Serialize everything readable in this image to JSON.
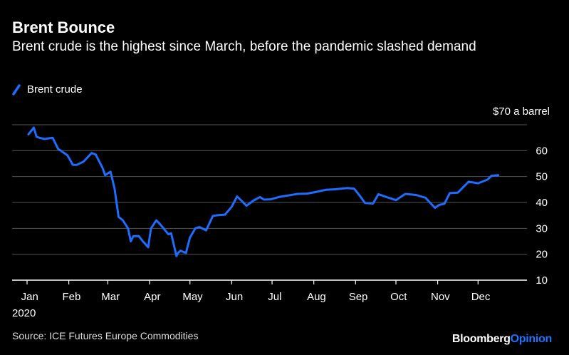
{
  "header": {
    "title": "Brent Bounce",
    "subtitle": "Brent crude is the highest since March, before the pandemic slashed demand"
  },
  "footer": {
    "source": "Source: ICE Futures Europe Commodities",
    "brand_part1": "Bloomberg",
    "brand_part2": "Opinion"
  },
  "colors": {
    "background": "#000000",
    "line": "#1e6dff",
    "grid": "#555555",
    "brand_accent": "#1e73ff"
  },
  "chart_data": {
    "type": "line",
    "title": "Brent Bounce",
    "unit_label": "$70 a barrel",
    "ylim": [
      10,
      70
    ],
    "yticks": [
      10,
      20,
      30,
      40,
      50,
      60
    ],
    "y_tick_labels": [
      "10",
      "20",
      "30",
      "40",
      "50",
      "60"
    ],
    "grid": true,
    "legend": "top-left",
    "x_ticks": [
      "Jan",
      "Feb",
      "Mar",
      "Apr",
      "May",
      "Jun",
      "Jul",
      "Aug",
      "Sep",
      "Oct",
      "Nov",
      "Dec"
    ],
    "x_tick_sublabel": "2020",
    "series": [
      {
        "name": "Brent crude",
        "x": [
          "2020-01-02",
          "2020-01-06",
          "2020-01-08",
          "2020-01-10",
          "2020-01-14",
          "2020-01-20",
          "2020-01-24",
          "2020-01-28",
          "2020-01-31",
          "2020-02-04",
          "2020-02-07",
          "2020-02-12",
          "2020-02-18",
          "2020-02-21",
          "2020-02-26",
          "2020-02-28",
          "2020-03-03",
          "2020-03-06",
          "2020-03-09",
          "2020-03-12",
          "2020-03-16",
          "2020-03-18",
          "2020-03-20",
          "2020-03-24",
          "2020-03-27",
          "2020-03-31",
          "2020-04-02",
          "2020-04-06",
          "2020-04-09",
          "2020-04-15",
          "2020-04-17",
          "2020-04-21",
          "2020-04-22",
          "2020-04-24",
          "2020-04-28",
          "2020-05-01",
          "2020-05-05",
          "2020-05-08",
          "2020-05-13",
          "2020-05-18",
          "2020-05-22",
          "2020-05-27",
          "2020-06-01",
          "2020-06-05",
          "2020-06-08",
          "2020-06-12",
          "2020-06-17",
          "2020-06-22",
          "2020-06-25",
          "2020-06-30",
          "2020-07-06",
          "2020-07-13",
          "2020-07-20",
          "2020-07-27",
          "2020-08-03",
          "2020-08-10",
          "2020-08-17",
          "2020-08-26",
          "2020-08-31",
          "2020-09-04",
          "2020-09-08",
          "2020-09-14",
          "2020-09-18",
          "2020-09-25",
          "2020-10-01",
          "2020-10-08",
          "2020-10-16",
          "2020-10-23",
          "2020-10-30",
          "2020-11-02",
          "2020-11-06",
          "2020-11-10",
          "2020-11-16",
          "2020-11-24",
          "2020-12-01",
          "2020-12-08",
          "2020-12-11",
          "2020-12-16"
        ],
        "y": [
          66.3,
          68.9,
          65.4,
          65.0,
          64.5,
          65.0,
          60.7,
          59.3,
          58.2,
          54.5,
          54.5,
          55.8,
          59.1,
          58.5,
          53.4,
          50.5,
          51.9,
          45.3,
          34.4,
          33.2,
          30.0,
          25.0,
          27.0,
          27.0,
          25.0,
          22.7,
          29.9,
          33.1,
          31.5,
          27.7,
          28.1,
          19.3,
          20.4,
          21.4,
          20.5,
          26.4,
          30.0,
          30.5,
          29.2,
          34.8,
          35.1,
          35.3,
          38.3,
          42.3,
          40.8,
          38.7,
          40.7,
          42.1,
          41.1,
          41.2,
          42.1,
          42.7,
          43.3,
          43.4,
          44.1,
          44.9,
          45.1,
          45.6,
          45.3,
          42.7,
          39.8,
          39.6,
          43.2,
          41.9,
          40.9,
          43.3,
          42.9,
          41.8,
          37.9,
          39.0,
          39.5,
          43.6,
          43.8,
          48.0,
          47.4,
          48.8,
          50.3,
          50.5
        ]
      }
    ]
  }
}
